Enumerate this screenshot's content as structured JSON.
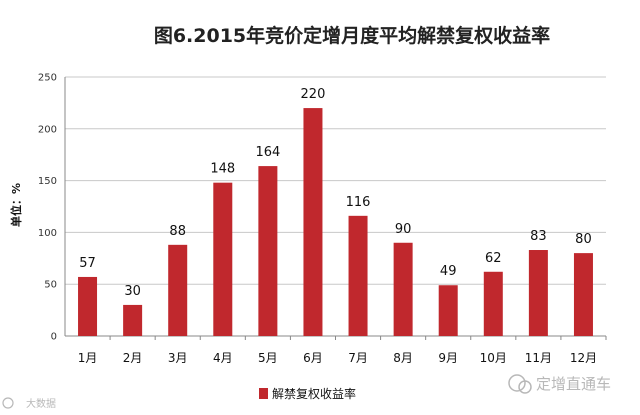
{
  "chart_data": {
    "type": "bar",
    "title": "图6.2015年竞价定增月度平均解禁复权收益率",
    "ylabel": "单位：%",
    "xlabel": "",
    "categories": [
      "1月",
      "2月",
      "3月",
      "4月",
      "5月",
      "6月",
      "7月",
      "8月",
      "9月",
      "10月",
      "11月",
      "12月"
    ],
    "series": [
      {
        "name": "解禁复权收益率",
        "values": [
          57,
          30,
          88,
          148,
          164,
          220,
          116,
          90,
          49,
          62,
          83,
          80
        ]
      }
    ],
    "ylim": [
      0,
      250
    ],
    "yticks": [
      0,
      50,
      100,
      150,
      200,
      250
    ],
    "grid": true,
    "legend": "bottom",
    "bar_color": "#c0282d"
  },
  "watermark": {
    "right": "定增直通车",
    "left": "大数据"
  }
}
